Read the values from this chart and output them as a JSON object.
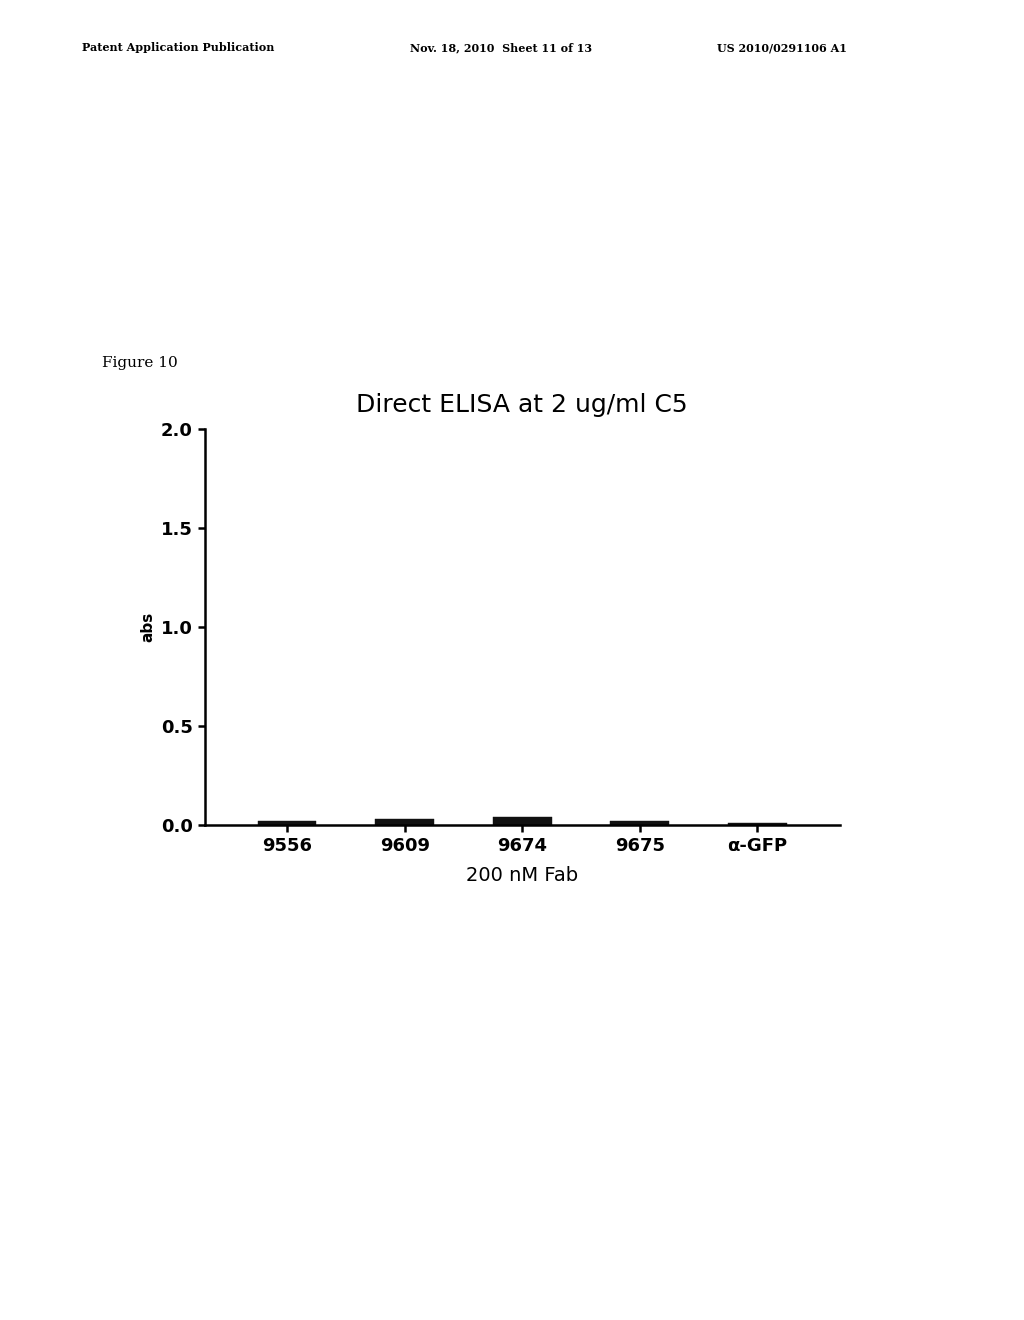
{
  "title": "Direct ELISA at 2 ug/ml C5",
  "figure_label": "Figure 10",
  "xlabel": "200 nM Fab",
  "ylabel": "abs",
  "ylim": [
    0.0,
    2.0
  ],
  "yticks": [
    0.0,
    0.5,
    1.0,
    1.5,
    2.0
  ],
  "ytick_labels": [
    "0.0",
    "0.5",
    "1.0",
    "1.5",
    "2.0"
  ],
  "categories": [
    "9556",
    "9609",
    "9674",
    "9675",
    "α-GFP"
  ],
  "values": [
    0.018,
    0.03,
    0.038,
    0.018,
    0.01
  ],
  "bar_color": "#111111",
  "background_color": "#ffffff",
  "title_fontsize": 18,
  "axis_label_fontsize": 11,
  "tick_fontsize": 13,
  "figure_label_fontsize": 11,
  "header_left": "Patent Application Publication",
  "header_mid": "Nov. 18, 2010  Sheet 11 of 13",
  "header_right": "US 2010/0291106 A1"
}
